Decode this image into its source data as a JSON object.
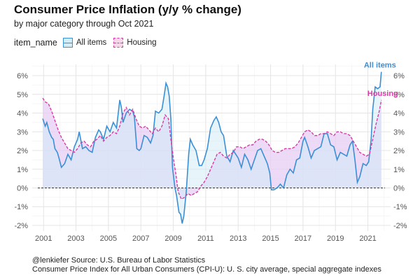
{
  "chart_data": {
    "type": "area",
    "title": "Consumer Price Inflation (y/y % change)",
    "subtitle": "by major category through Oct 2021",
    "legend_title": "item_name",
    "legend_position": "top-left",
    "xlim": [
      2000.3,
      2022.4
    ],
    "ylim": [
      -2.3,
      6.6
    ],
    "x_ticks": [
      2001,
      2003,
      2005,
      2007,
      2009,
      2011,
      2013,
      2015,
      2017,
      2019,
      2021
    ],
    "x_tick_labels": [
      "2001",
      "2003",
      "2005",
      "2007",
      "2009",
      "2011",
      "2013",
      "2015",
      "2017",
      "2019",
      "2021"
    ],
    "y_ticks": [
      -2,
      -1,
      0,
      1,
      2,
      3,
      4,
      5,
      6
    ],
    "y_tick_labels": [
      "-2%",
      "-1%",
      "0%",
      "1%",
      "2%",
      "3%",
      "4%",
      "5%",
      "6%"
    ],
    "grid": true,
    "reference_line": 0,
    "series": [
      {
        "name": "All items",
        "end_label": "All items",
        "color": "#3a8fd6",
        "fill": "#d3ecf7",
        "style": "solid",
        "x": [
          2000.95,
          2001.1,
          2001.2,
          2001.35,
          2001.5,
          2001.6,
          2001.7,
          2001.85,
          2001.95,
          2002.1,
          2002.3,
          2002.5,
          2002.7,
          2002.9,
          2003.1,
          2003.2,
          2003.4,
          2003.6,
          2003.8,
          2004.0,
          2004.2,
          2004.4,
          2004.5,
          2004.7,
          2004.9,
          2005.1,
          2005.3,
          2005.5,
          2005.7,
          2005.8,
          2005.9,
          2006.1,
          2006.3,
          2006.5,
          2006.6,
          2006.75,
          2006.9,
          2007.0,
          2007.2,
          2007.4,
          2007.6,
          2007.75,
          2007.9,
          2008.1,
          2008.3,
          2008.45,
          2008.55,
          2008.65,
          2008.75,
          2008.85,
          2008.95,
          2009.1,
          2009.2,
          2009.35,
          2009.45,
          2009.55,
          2009.65,
          2009.8,
          2009.95,
          2010.05,
          2010.2,
          2010.4,
          2010.6,
          2010.75,
          2010.9,
          2011.1,
          2011.3,
          2011.5,
          2011.65,
          2011.8,
          2011.95,
          2012.1,
          2012.3,
          2012.5,
          2012.7,
          2012.85,
          2013.0,
          2013.2,
          2013.4,
          2013.6,
          2013.8,
          2014.0,
          2014.2,
          2014.4,
          2014.6,
          2014.8,
          2014.95,
          2015.05,
          2015.2,
          2015.4,
          2015.6,
          2015.8,
          2016.0,
          2016.2,
          2016.4,
          2016.6,
          2016.8,
          2017.0,
          2017.1,
          2017.3,
          2017.5,
          2017.7,
          2017.9,
          2018.1,
          2018.3,
          2018.5,
          2018.7,
          2018.9,
          2019.1,
          2019.3,
          2019.5,
          2019.7,
          2019.9,
          2020.05,
          2020.2,
          2020.35,
          2020.5,
          2020.7,
          2020.9,
          2021.05,
          2021.2,
          2021.3,
          2021.45,
          2021.6,
          2021.75,
          2021.83
        ],
        "values": [
          3.7,
          3.3,
          3.5,
          3.0,
          2.7,
          2.6,
          2.1,
          1.9,
          1.6,
          1.1,
          1.3,
          1.8,
          1.5,
          2.2,
          2.6,
          3.0,
          2.1,
          2.2,
          2.0,
          1.9,
          2.7,
          3.1,
          3.0,
          2.6,
          3.3,
          3.0,
          3.5,
          3.2,
          4.7,
          4.3,
          3.5,
          4.0,
          4.2,
          4.1,
          3.8,
          2.1,
          2.0,
          2.1,
          2.8,
          2.7,
          2.4,
          2.8,
          4.1,
          4.0,
          4.2,
          5.0,
          5.6,
          5.4,
          4.9,
          3.7,
          1.1,
          0.0,
          -0.4,
          -1.3,
          -1.4,
          -1.9,
          -1.5,
          -0.2,
          1.8,
          2.6,
          2.3,
          2.0,
          1.2,
          1.2,
          1.5,
          2.1,
          3.2,
          3.6,
          3.8,
          3.5,
          3.0,
          2.8,
          1.7,
          1.4,
          2.0,
          1.8,
          1.6,
          1.1,
          1.8,
          1.5,
          1.0,
          1.5,
          2.0,
          2.1,
          1.7,
          1.3,
          0.8,
          -0.1,
          -0.1,
          0.0,
          0.2,
          0.0,
          0.7,
          1.0,
          0.8,
          1.5,
          1.6,
          2.5,
          2.7,
          2.2,
          1.6,
          2.0,
          2.1,
          2.2,
          2.9,
          2.9,
          2.3,
          2.2,
          1.5,
          1.9,
          1.8,
          1.7,
          2.3,
          2.5,
          1.5,
          0.3,
          0.6,
          1.3,
          1.2,
          1.4,
          2.6,
          4.2,
          5.4,
          5.3,
          5.4,
          6.2
        ]
      },
      {
        "name": "Housing",
        "end_label": "Housing",
        "color": "#d63ea6",
        "fill": "#e6cdf3",
        "style": "dashed",
        "x": [
          2000.95,
          2001.1,
          2001.3,
          2001.5,
          2001.7,
          2001.9,
          2002.1,
          2002.3,
          2002.5,
          2002.7,
          2002.9,
          2003.1,
          2003.3,
          2003.5,
          2003.7,
          2003.9,
          2004.1,
          2004.3,
          2004.5,
          2004.7,
          2004.9,
          2005.1,
          2005.3,
          2005.5,
          2005.7,
          2005.9,
          2006.1,
          2006.3,
          2006.5,
          2006.7,
          2006.9,
          2007.1,
          2007.3,
          2007.5,
          2007.7,
          2007.9,
          2008.1,
          2008.3,
          2008.5,
          2008.7,
          2008.85,
          2009.0,
          2009.15,
          2009.3,
          2009.5,
          2009.7,
          2009.9,
          2010.1,
          2010.3,
          2010.5,
          2010.7,
          2010.9,
          2011.1,
          2011.3,
          2011.5,
          2011.7,
          2011.9,
          2012.1,
          2012.3,
          2012.5,
          2012.7,
          2012.9,
          2013.1,
          2013.3,
          2013.5,
          2013.7,
          2013.9,
          2014.1,
          2014.3,
          2014.5,
          2014.7,
          2014.9,
          2015.1,
          2015.3,
          2015.5,
          2015.7,
          2015.9,
          2016.1,
          2016.3,
          2016.5,
          2016.7,
          2016.9,
          2017.1,
          2017.3,
          2017.5,
          2017.7,
          2017.9,
          2018.1,
          2018.3,
          2018.5,
          2018.7,
          2018.9,
          2019.1,
          2019.3,
          2019.5,
          2019.7,
          2019.9,
          2020.1,
          2020.3,
          2020.5,
          2020.7,
          2020.9,
          2021.1,
          2021.3,
          2021.5,
          2021.7,
          2021.83
        ],
        "values": [
          4.8,
          4.6,
          4.5,
          4.1,
          3.6,
          3.1,
          2.7,
          2.4,
          2.1,
          2.0,
          1.9,
          2.1,
          2.4,
          2.5,
          2.3,
          2.2,
          2.5,
          2.6,
          2.8,
          2.5,
          2.7,
          2.8,
          3.0,
          2.9,
          3.3,
          4.0,
          4.3,
          3.9,
          4.2,
          3.7,
          3.3,
          3.2,
          3.3,
          3.1,
          2.9,
          3.2,
          3.0,
          3.3,
          3.9,
          3.7,
          2.6,
          1.6,
          0.8,
          -0.2,
          -0.6,
          -0.5,
          -0.3,
          -0.4,
          -0.3,
          -0.2,
          0.1,
          0.3,
          0.6,
          1.0,
          1.4,
          1.8,
          1.9,
          1.7,
          1.6,
          1.8,
          1.9,
          2.2,
          2.2,
          2.1,
          2.2,
          2.3,
          2.3,
          2.5,
          2.6,
          2.6,
          2.5,
          2.3,
          2.0,
          1.9,
          1.9,
          2.0,
          2.1,
          2.1,
          2.1,
          2.2,
          2.4,
          2.7,
          3.0,
          3.1,
          3.0,
          2.8,
          2.8,
          2.9,
          2.9,
          3.0,
          2.9,
          2.8,
          3.0,
          3.0,
          2.9,
          2.9,
          2.8,
          2.5,
          2.2,
          1.9,
          1.8,
          1.7,
          1.8,
          2.6,
          3.4,
          4.1,
          4.7
        ]
      }
    ]
  },
  "footer": {
    "credit": "@lenkiefer Source: U.S. Bureau of Labor Statistics",
    "note": "Consumer Price Index for All Urban Consumers (CPI-U): U. S. city average, special aggregate indexes"
  }
}
